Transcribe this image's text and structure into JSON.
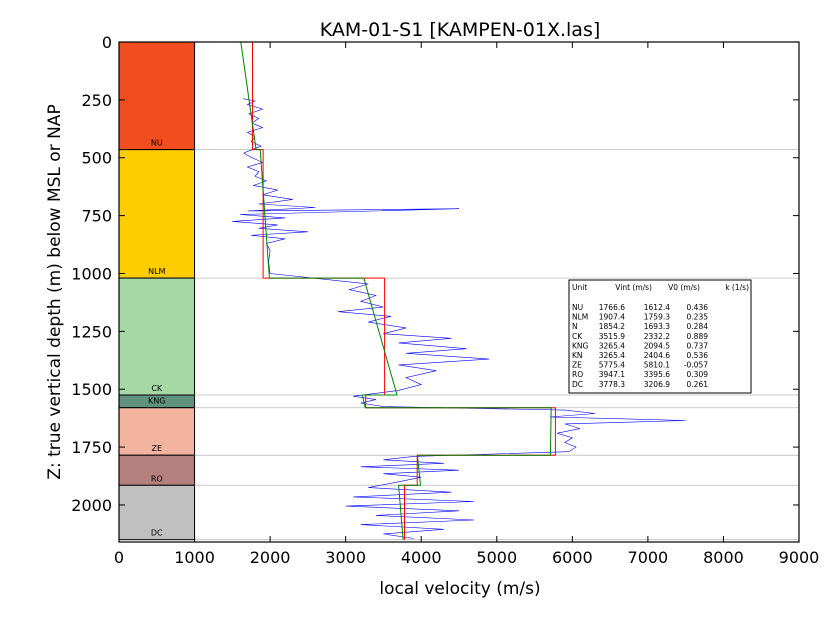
{
  "colors": {
    "velocity_log": "#0000ff",
    "interval_velocity": "#ff0000",
    "v0k_model": "#008000",
    "boundary": "#bbbbbb",
    "frame": "#000000"
  },
  "chart_data": {
    "type": "line",
    "title": "KAM-01-S1 [KAMPEN-01X.las]",
    "xlabel": "local velocity (m/s)",
    "ylabel": "Z: true vertical depth (m) below MSL or NAP",
    "xlim": [
      0,
      9000
    ],
    "ylim": [
      2160,
      0
    ],
    "y_inverted": true,
    "grid": false,
    "xticks": [
      0,
      1000,
      2000,
      3000,
      4000,
      5000,
      6000,
      7000,
      8000,
      9000
    ],
    "yticks": [
      0,
      250,
      500,
      750,
      1000,
      1250,
      1500,
      1750,
      2000
    ],
    "units": [
      {
        "name": "NU",
        "top": 0,
        "base": 465,
        "color": "#f24d1f",
        "vint": 1766.6,
        "v0": 1612.4,
        "k": 0.436
      },
      {
        "name": "NLM",
        "top": 465,
        "base": 1020,
        "color": "#fecd00",
        "vint": 1907.4,
        "v0": 1759.3,
        "k": 0.235
      },
      {
        "name": "CK",
        "top": 1020,
        "base": 1525,
        "color": "#a6d8a6",
        "vint": 3515.9,
        "v0": 2332.2,
        "k": 0.889
      },
      {
        "name": "KNG",
        "top": 1525,
        "base": 1580,
        "color": "#5f917e",
        "vint": 3265.4,
        "v0": 2094.5,
        "k": 0.737
      },
      {
        "name": "ZE",
        "top": 1580,
        "base": 1785,
        "color": "#f2b49f",
        "vint": 5775.4,
        "v0": 5810.1,
        "k": -0.057
      },
      {
        "name": "RO",
        "top": 1785,
        "base": 1915,
        "color": "#b3807e",
        "vint": 3947.1,
        "v0": 3395.6,
        "k": 0.309
      },
      {
        "name": "DC",
        "top": 1915,
        "base": 2150,
        "color": "#c0c0c0",
        "vint": 3778.3,
        "v0": 3206.9,
        "k": 0.261
      }
    ],
    "table": {
      "header": [
        "Unit",
        "Vint (m/s)",
        "V0 (m/s)",
        "k (1/s)"
      ],
      "rows": [
        [
          "NU",
          "1766.6",
          "1612.4",
          "0.436"
        ],
        [
          "NLM",
          "1907.4",
          "1759.3",
          "0.235"
        ],
        [
          "N",
          "1854.2",
          "1693.3",
          "0.284"
        ],
        [
          "CK",
          "3515.9",
          "2332.2",
          "0.889"
        ],
        [
          "KNG",
          "3265.4",
          "2094.5",
          "0.737"
        ],
        [
          "KN",
          "3265.4",
          "2404.6",
          "0.536"
        ],
        [
          "ZE",
          "5775.4",
          "5810.1",
          "-0.057"
        ],
        [
          "RO",
          "3947.1",
          "3395.6",
          "0.309"
        ],
        [
          "DC",
          "3778.3",
          "3206.9",
          "0.261"
        ]
      ]
    },
    "series": [
      {
        "kind": "velocity-log",
        "points": [
          [
            1640,
            245
          ],
          [
            1800,
            255
          ],
          [
            1700,
            270
          ],
          [
            1900,
            290
          ],
          [
            1720,
            310
          ],
          [
            1850,
            330
          ],
          [
            1760,
            350
          ],
          [
            1900,
            370
          ],
          [
            1700,
            390
          ],
          [
            1800,
            410
          ],
          [
            1750,
            430
          ],
          [
            1880,
            450
          ],
          [
            1720,
            470
          ],
          [
            1650,
            480
          ],
          [
            1760,
            500
          ],
          [
            1900,
            520
          ],
          [
            1700,
            540
          ],
          [
            1850,
            560
          ],
          [
            1800,
            580
          ],
          [
            1950,
            600
          ],
          [
            1780,
            620
          ],
          [
            2100,
            640
          ],
          [
            1900,
            660
          ],
          [
            2300,
            680
          ],
          [
            1850,
            700
          ],
          [
            2600,
            715
          ],
          [
            1700,
            730
          ],
          [
            4500,
            720
          ],
          [
            1600,
            745
          ],
          [
            2200,
            760
          ],
          [
            1500,
            775
          ],
          [
            2100,
            790
          ],
          [
            1850,
            805
          ],
          [
            2500,
            820
          ],
          [
            1750,
            835
          ],
          [
            2200,
            850
          ],
          [
            1950,
            870
          ],
          [
            2000,
            900
          ],
          [
            1980,
            950
          ],
          [
            2000,
            1000
          ],
          [
            3300,
            1045
          ],
          [
            3050,
            1070
          ],
          [
            3400,
            1095
          ],
          [
            3200,
            1120
          ],
          [
            3500,
            1145
          ],
          [
            2900,
            1165
          ],
          [
            3600,
            1185
          ],
          [
            3300,
            1210
          ],
          [
            3800,
            1235
          ],
          [
            3500,
            1260
          ],
          [
            4400,
            1280
          ],
          [
            3700,
            1300
          ],
          [
            4600,
            1325
          ],
          [
            3800,
            1345
          ],
          [
            4900,
            1370
          ],
          [
            3700,
            1395
          ],
          [
            4200,
            1420
          ],
          [
            3800,
            1450
          ],
          [
            4000,
            1480
          ],
          [
            3700,
            1505
          ],
          [
            3100,
            1530
          ],
          [
            3400,
            1545
          ],
          [
            3200,
            1560
          ],
          [
            3500,
            1575
          ],
          [
            5900,
            1590
          ],
          [
            6300,
            1605
          ],
          [
            5700,
            1620
          ],
          [
            7500,
            1635
          ],
          [
            5900,
            1650
          ],
          [
            6100,
            1670
          ],
          [
            5800,
            1690
          ],
          [
            6000,
            1710
          ],
          [
            5900,
            1730
          ],
          [
            6050,
            1750
          ],
          [
            5950,
            1770
          ],
          [
            3900,
            1790
          ],
          [
            3500,
            1805
          ],
          [
            4300,
            1820
          ],
          [
            3200,
            1835
          ],
          [
            4500,
            1850
          ],
          [
            3500,
            1865
          ],
          [
            4000,
            1880
          ],
          [
            3700,
            1900
          ],
          [
            3300,
            1925
          ],
          [
            4400,
            1945
          ],
          [
            3100,
            1965
          ],
          [
            4700,
            1985
          ],
          [
            3000,
            2005
          ],
          [
            4500,
            2025
          ],
          [
            3400,
            2045
          ],
          [
            4700,
            2065
          ],
          [
            3200,
            2085
          ],
          [
            4300,
            2105
          ],
          [
            3500,
            2125
          ],
          [
            3900,
            2145
          ]
        ]
      },
      {
        "kind": "interval-velocity",
        "points": [
          [
            1766.6,
            0
          ],
          [
            1766.6,
            465
          ],
          [
            1907.4,
            465
          ],
          [
            1907.4,
            1020
          ],
          [
            3515.9,
            1020
          ],
          [
            3515.9,
            1525
          ],
          [
            3265.4,
            1525
          ],
          [
            3265.4,
            1580
          ],
          [
            5775.4,
            1580
          ],
          [
            5775.4,
            1785
          ],
          [
            3947.1,
            1785
          ],
          [
            3947.1,
            1915
          ],
          [
            3778.3,
            1915
          ],
          [
            3778.3,
            2150
          ]
        ]
      },
      {
        "kind": "v0k-model",
        "points": [
          [
            1612.4,
            0
          ],
          [
            1815,
            465
          ],
          [
            1869,
            465
          ],
          [
            1990,
            1020
          ],
          [
            3240,
            1020
          ],
          [
            3680,
            1525
          ],
          [
            3220,
            1525
          ],
          [
            3260,
            1580
          ],
          [
            5720,
            1580
          ],
          [
            5710,
            1785
          ],
          [
            3950,
            1785
          ],
          [
            3990,
            1915
          ],
          [
            3700,
            1915
          ],
          [
            3760,
            2150
          ]
        ]
      }
    ]
  }
}
